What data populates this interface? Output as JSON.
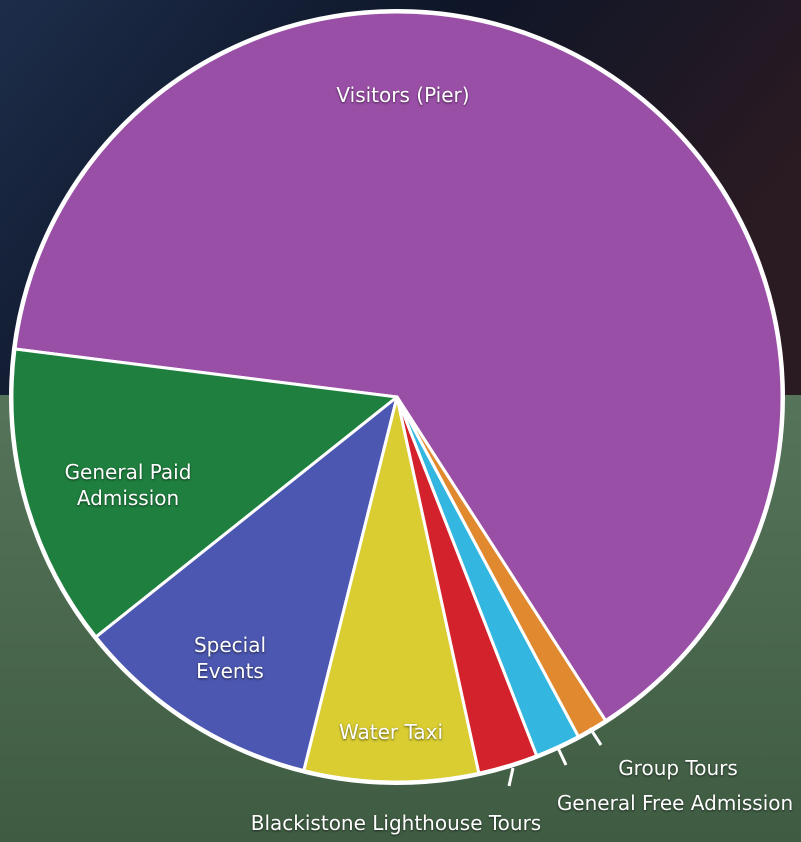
{
  "chart_data": {
    "type": "pie",
    "categories": [
      "Visitors (Pier)",
      "General Paid Admission",
      "Special Events",
      "Water Taxi",
      "Blackistone Lighthouse Tours",
      "General Free Admission",
      "Group Tours"
    ],
    "values": [
      63.9,
      12.7,
      10.4,
      7.3,
      2.5,
      1.9,
      1.3
    ],
    "colors": [
      "#9a4fa6",
      "#1f7f3f",
      "#4b57b0",
      "#d9cd32",
      "#d3222b",
      "#33b6df",
      "#e0892f"
    ]
  }
}
